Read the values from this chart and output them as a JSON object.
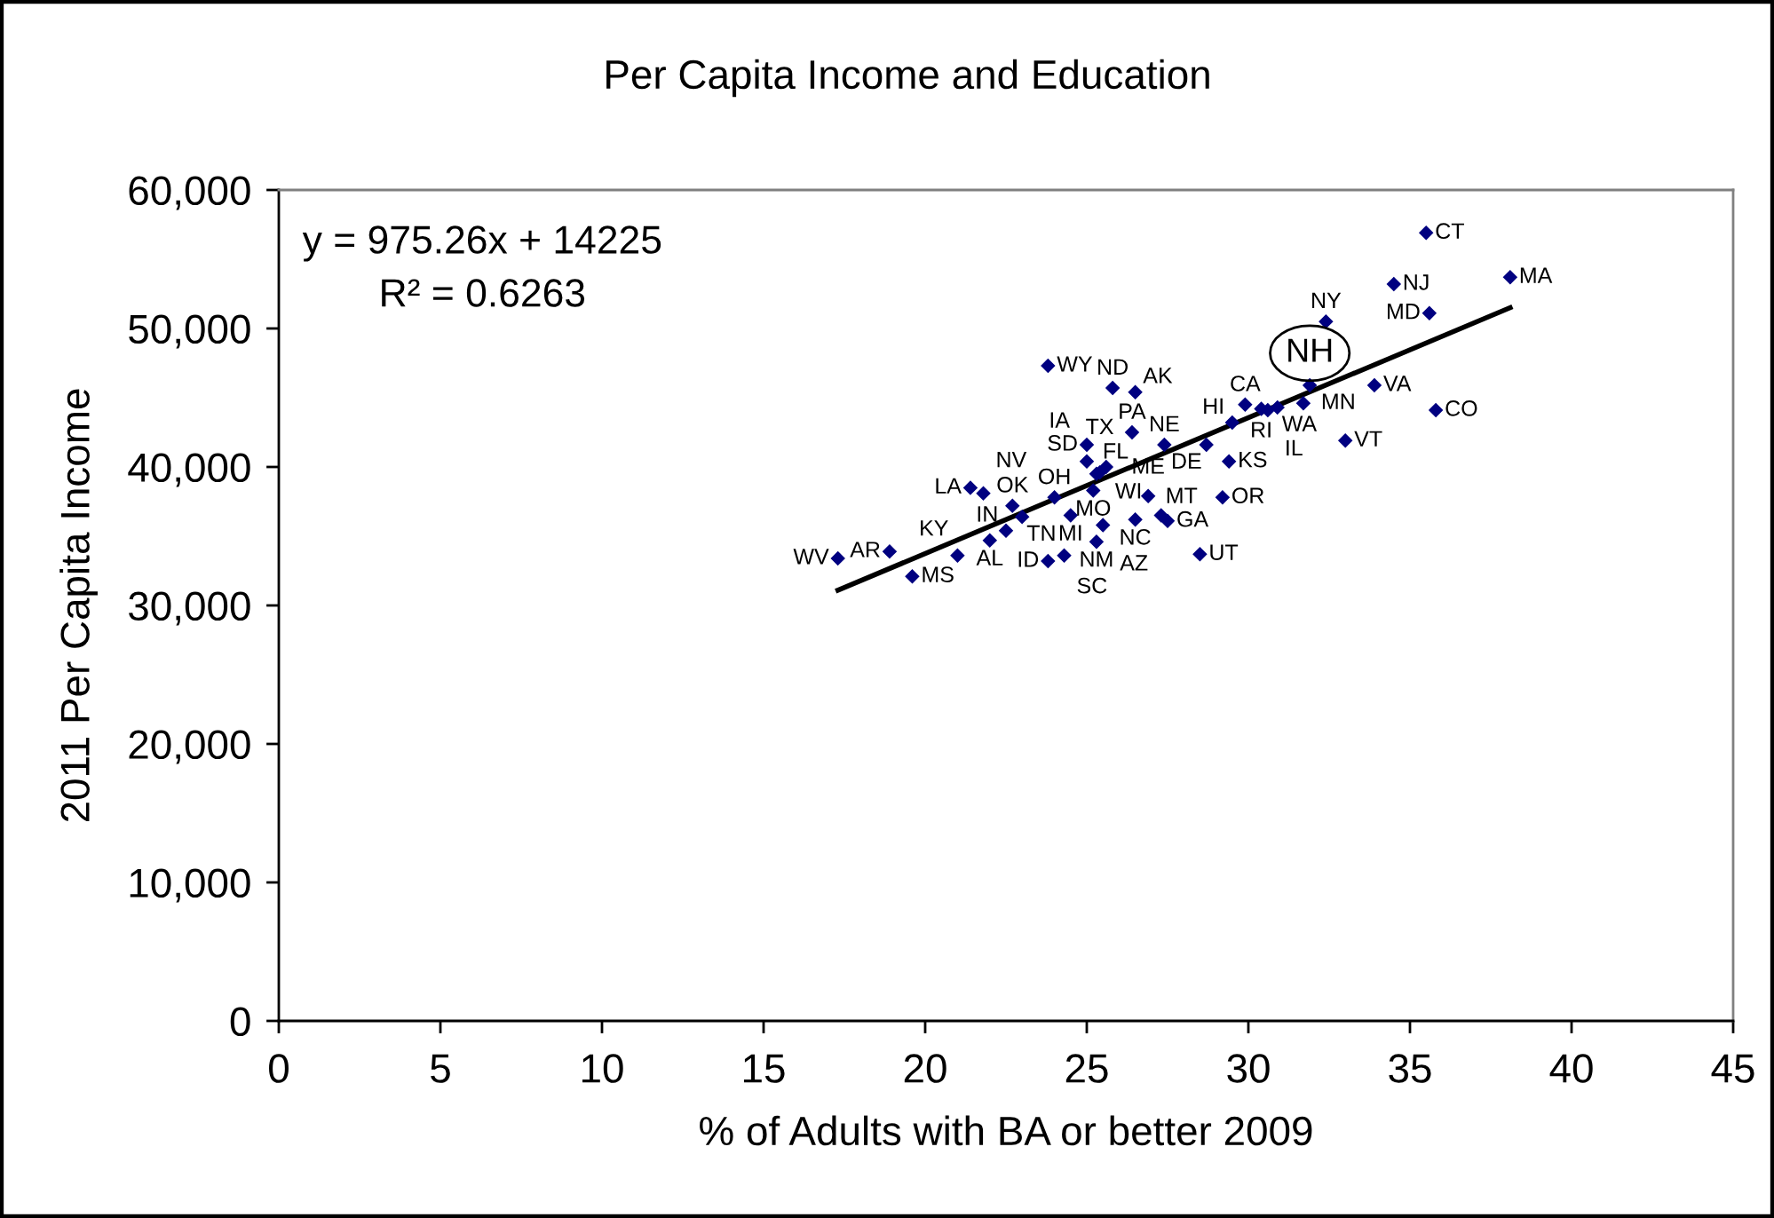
{
  "chart_data": {
    "type": "scatter",
    "title": "Per Capita Income and Education",
    "xlabel": "% of Adults with BA or better 2009",
    "ylabel": "2011 Per Capita Income",
    "xlim": [
      0,
      45
    ],
    "xticks": [
      0,
      5,
      10,
      15,
      20,
      25,
      30,
      35,
      40,
      45
    ],
    "ylim": [
      0,
      60000
    ],
    "yticks": [
      {
        "value": 0,
        "label": "0"
      },
      {
        "value": 10000,
        "label": "10,000"
      },
      {
        "value": 20000,
        "label": "20,000"
      },
      {
        "value": 30000,
        "label": "30,000"
      },
      {
        "value": 40000,
        "label": "40,000"
      },
      {
        "value": 50000,
        "label": "50,000"
      },
      {
        "value": 60000,
        "label": "60,000"
      }
    ],
    "marker": "diamond",
    "grid": false,
    "annotations": [
      "y = 975.26x + 14225",
      "R² = 0.6263",
      {
        "text": "NH",
        "x": 31.9,
        "y": 45900
      }
    ],
    "series": [
      {
        "color": "#000080",
        "x": [
          22.0,
          26.5,
          25.5,
          18.9,
          29.9,
          35.8,
          35.5,
          28.7,
          25.3,
          27.5,
          29.5,
          23.8,
          30.6,
          22.5,
          25.0,
          29.4,
          21.0,
          21.4,
          26.9,
          35.6,
          38.1,
          24.5,
          31.7,
          19.6,
          25.2,
          27.3,
          27.4,
          21.8,
          31.9,
          34.5,
          25.3,
          32.4,
          26.5,
          25.8,
          24.0,
          22.7,
          29.2,
          26.4,
          30.4,
          24.3,
          25.0,
          23.0,
          25.4,
          28.5,
          33.0,
          33.9,
          30.9,
          17.3,
          25.6,
          23.8
        ],
        "values": [
          34700,
          45400,
          35800,
          33900,
          44500,
          44100,
          56900,
          41600,
          39500,
          36100,
          43200,
          33200,
          44100,
          35400,
          40400,
          40400,
          33600,
          38500,
          37900,
          51100,
          53700,
          36500,
          44600,
          32100,
          38300,
          36500,
          41600,
          38100,
          45900,
          53200,
          34600,
          50500,
          36200,
          45700,
          37800,
          37200,
          37800,
          42500,
          44200,
          33600,
          41600,
          36400,
          39600,
          33700,
          41900,
          45900,
          44300,
          33400,
          40000,
          47300
        ],
        "value_labels": [
          "AL",
          "AK",
          "AZ",
          "AR",
          "CA",
          "CO",
          "CT",
          "DE",
          "FL",
          "GA",
          "HI",
          "ID",
          "IL",
          "IN",
          "IA",
          "KS",
          "KY",
          "LA",
          "ME",
          "MD",
          "MA",
          "MI",
          "MN",
          "MS",
          "MO",
          "MT",
          "NE",
          "NV",
          null,
          "NJ",
          "NM",
          "NY",
          "NC",
          "ND",
          "OH",
          "OK",
          "OR",
          "PA",
          "RI",
          "SC",
          "SD",
          "TN",
          "TX",
          "UT",
          "VT",
          "VA",
          "WA",
          "WV",
          "WI",
          "WY"
        ]
      },
      {
        "type": "line",
        "color": "#000000",
        "marker": "none",
        "line_style": "solid",
        "x": [
          17.3,
          38.1
        ],
        "values": [
          31100,
          51500
        ]
      }
    ]
  }
}
